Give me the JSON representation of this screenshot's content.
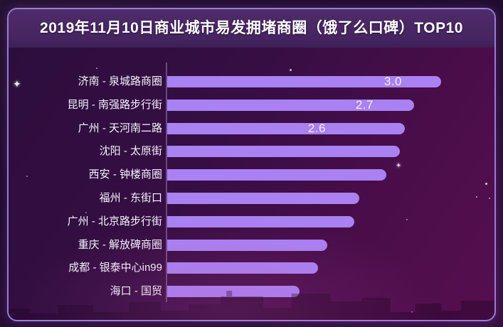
{
  "header": {
    "title": "2019年11月10日商业城市易发拥堵商圈（饿了么口碑）TOP10"
  },
  "chart_data": {
    "type": "bar",
    "orientation": "horizontal",
    "title": "2019年11月10日商业城市易发拥堵商圈（饿了么口碑）TOP10",
    "categories": [
      "济南 - 泉城路商圈",
      "昆明 - 南强路步行街",
      "广州 - 天河南二路",
      "沈阳 - 太原街",
      "西安 - 钟楼商圈",
      "福州 - 东街口",
      "广州 - 北京路步行街",
      "重庆 - 解放碑商圈",
      "成都 - 银泰中心in99",
      "海口 - 国贸"
    ],
    "values": [
      3.0,
      2.7,
      2.6,
      2.55,
      2.4,
      2.1,
      2.05,
      1.75,
      1.65,
      1.45
    ],
    "value_labels": [
      "3.0",
      "2.7",
      "2.6",
      "",
      "",
      "",
      "",
      "",
      "",
      ""
    ],
    "xlabel": "",
    "ylabel": "",
    "xlim": [
      0,
      3.3
    ],
    "grid": "off",
    "legend": "none"
  },
  "colors": {
    "bar": "#a981f2",
    "card_border": "#9a7cd0",
    "header_bg": "#4a2963",
    "bg_top": "#2b0e3c",
    "bg_bottom": "#560f4f",
    "title_text": "#ffffff",
    "label_text": "#f7f3ff"
  },
  "icons": {
    "star": "✦"
  }
}
